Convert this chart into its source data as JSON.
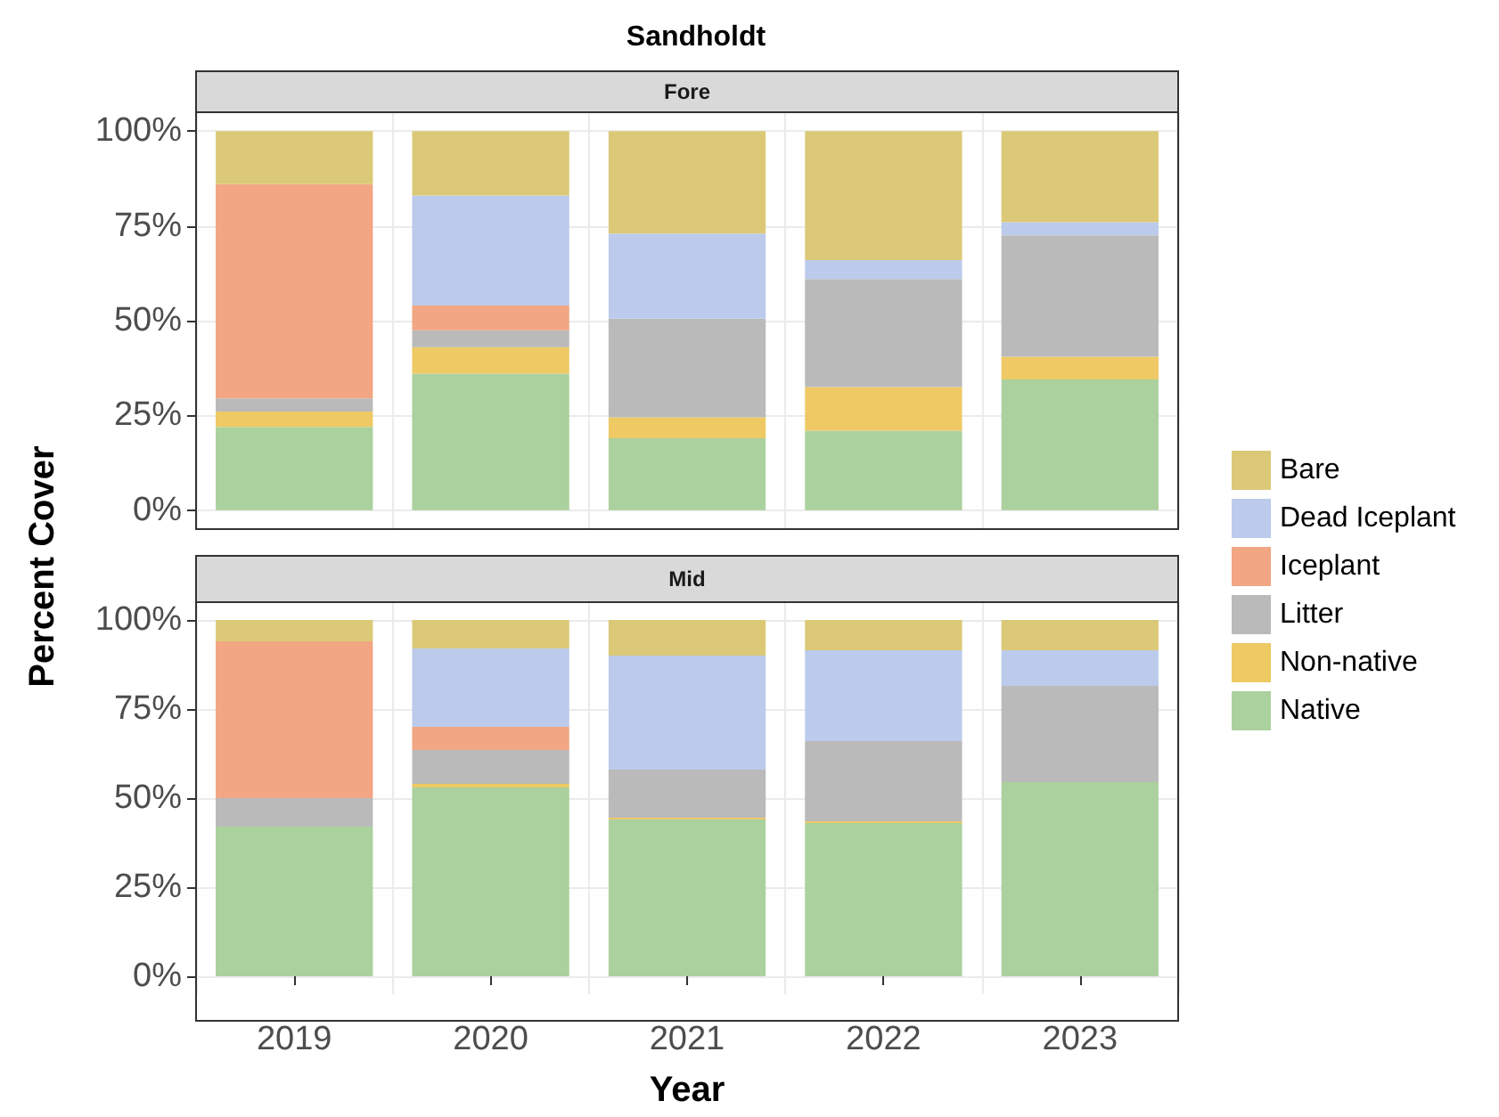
{
  "chart_data": [
    {
      "type": "bar",
      "title": "Sandholdt",
      "subtitle": "Fore",
      "ylabel": "Percent Cover",
      "categories": [
        "2019",
        "2020",
        "2021",
        "2022",
        "2023"
      ],
      "stacked": true,
      "ylim": [
        -5,
        105
      ],
      "yticks": [
        {
          "value": 0,
          "label": "0%"
        },
        {
          "value": 25,
          "label": "25%"
        },
        {
          "value": 50,
          "label": "50%"
        },
        {
          "value": 75,
          "label": "75%"
        },
        {
          "value": 100,
          "label": "100%"
        }
      ],
      "grid": true,
      "legend": "right",
      "tick_labels": "y",
      "series": [
        {
          "name": "Native",
          "color": "#abd19e",
          "values": [
            22,
            36,
            19,
            21,
            34.5
          ]
        },
        {
          "name": "Non-native",
          "color": "#eec964",
          "values": [
            4,
            7,
            5.5,
            11.5,
            6
          ]
        },
        {
          "name": "Litter",
          "color": "#bababa",
          "values": [
            3.5,
            4.5,
            26,
            28.5,
            32
          ]
        },
        {
          "name": "Iceplant",
          "color": "#f2a683",
          "values": [
            56.5,
            6.5,
            null,
            null,
            null
          ]
        },
        {
          "name": "Dead Iceplant",
          "color": "#bccbeb",
          "values": [
            null,
            29,
            22.5,
            5,
            3.5
          ]
        },
        {
          "name": "Bare",
          "color": "#dbc978",
          "values": [
            14,
            17,
            27,
            34,
            24
          ]
        }
      ]
    },
    {
      "type": "bar",
      "subtitle": "Mid",
      "xlabel": "Year",
      "categories": [
        "2019",
        "2020",
        "2021",
        "2022",
        "2023"
      ],
      "stacked": true,
      "ylim": [
        -5,
        105
      ],
      "yticks": [
        {
          "value": 0,
          "label": "0%"
        },
        {
          "value": 25,
          "label": "25%"
        },
        {
          "value": 50,
          "label": "50%"
        },
        {
          "value": 75,
          "label": "75%"
        },
        {
          "value": 100,
          "label": "100%"
        }
      ],
      "grid": true,
      "series": [
        {
          "color": "#abd19e",
          "values": [
            42,
            53,
            44,
            43,
            54.5
          ]
        },
        {
          "color": "#eec964",
          "values": [
            null,
            1,
            0.5,
            0.5,
            null
          ]
        },
        {
          "color": "#bababa",
          "values": [
            8,
            9.5,
            13.5,
            22.5,
            27
          ]
        },
        {
          "color": "#f2a683",
          "values": [
            44,
            6.5,
            null,
            null,
            null
          ]
        },
        {
          "color": "#bccbeb",
          "values": [
            null,
            22,
            32,
            25.5,
            10
          ]
        },
        {
          "color": "#dbc978",
          "values": [
            6,
            8,
            10,
            8.5,
            8.5
          ]
        }
      ]
    }
  ]
}
